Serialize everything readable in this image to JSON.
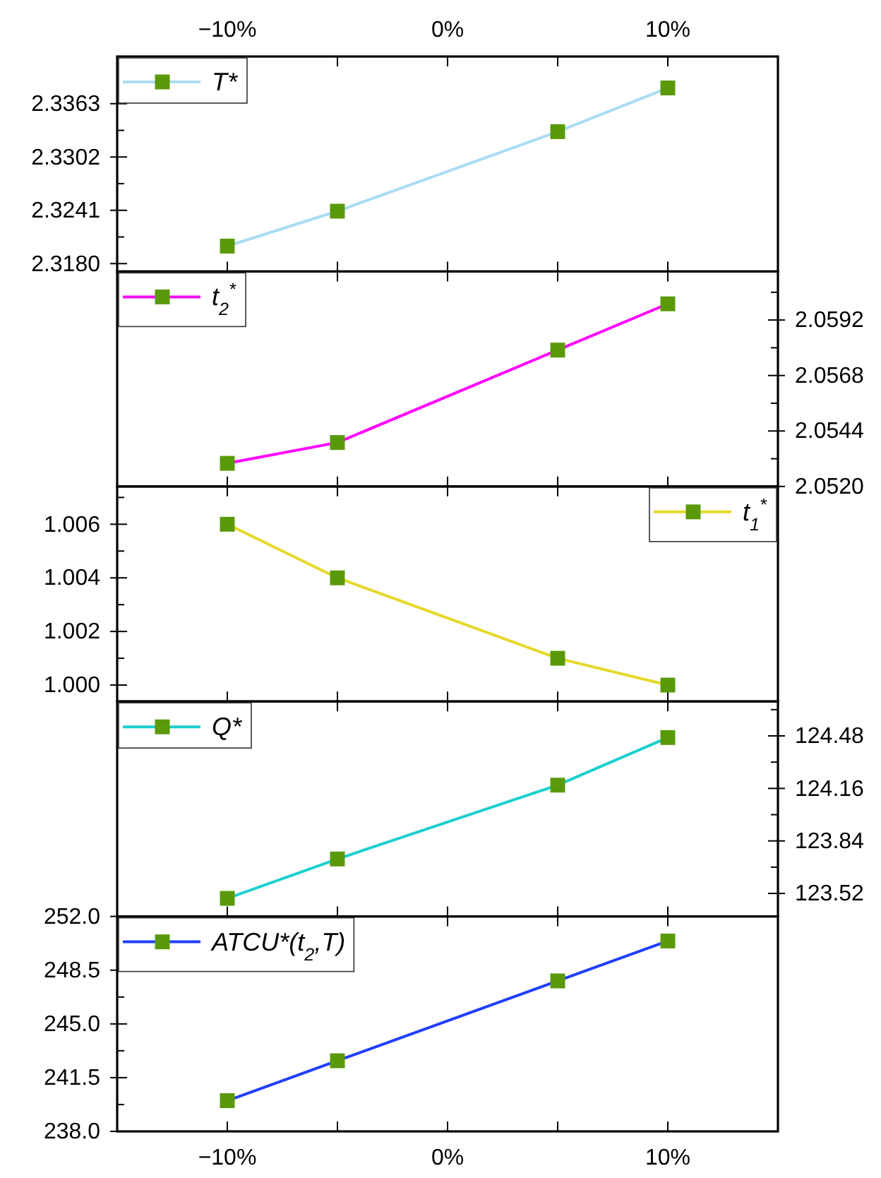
{
  "chart_data": [
    {
      "type": "line",
      "x": [
        -10,
        -5,
        5,
        10
      ],
      "xlim": [
        -15,
        15
      ],
      "xticks": [
        {
          "value": -10,
          "label": null
        },
        {
          "value": -5,
          "label": null
        },
        {
          "value": 0,
          "label": null
        },
        {
          "value": 5,
          "label": null
        },
        {
          "value": 10,
          "label": null
        }
      ],
      "x2lim": [
        -15,
        15
      ],
      "x2ticks": [
        {
          "value": -10,
          "label": "−10%"
        },
        {
          "value": -5,
          "label": null
        },
        {
          "value": 0,
          "label": "0%"
        },
        {
          "value": 5,
          "label": null
        },
        {
          "value": 10,
          "label": "10%"
        }
      ],
      "ylim": [
        2.3171,
        2.3417
      ],
      "yticks": [
        {
          "value": 2.318,
          "label": "2.3180"
        },
        {
          "value": 2.32105,
          "label": null
        },
        2.3241,
        {
          "value": 2.32715,
          "label": null
        },
        2.3302,
        {
          "value": 2.33325,
          "label": null
        },
        2.3363,
        {
          "value": 2.33935,
          "label": null
        }
      ],
      "tick_labels": "y",
      "marker": "square",
      "legend": "top left",
      "grid": false,
      "series": [
        {
          "name": "T*",
          "color": "#aadcf5",
          "values": [
            2.32,
            2.324,
            2.3331,
            2.3381
          ]
        }
      ]
    },
    {
      "type": "line",
      "x": [
        -10,
        -5,
        5,
        10
      ],
      "xlim": [
        -15,
        15
      ],
      "xticks": [
        {
          "value": -10,
          "label": null
        },
        {
          "value": -5,
          "label": null
        },
        {
          "value": 0,
          "label": null
        },
        {
          "value": 5,
          "label": null
        },
        {
          "value": 10,
          "label": null
        }
      ],
      "y2lim": [
        2.052,
        2.0613
      ],
      "y2ticks": [
        {
          "value": 2.052,
          "label": "2.0520"
        },
        {
          "value": 2.0532,
          "label": null
        },
        2.0544,
        {
          "value": 2.0556,
          "label": null
        },
        2.0568,
        {
          "value": 2.058,
          "label": null
        },
        2.0592,
        {
          "value": 2.0604,
          "label": null
        }
      ],
      "tick_labels": "y",
      "marker": "square",
      "legend": "top left",
      "grid": false,
      "series": [
        {
          "name": "t$_{2}$$^{*}$",
          "color": "#ff00ff",
          "axis": "y2",
          "values": [
            2.053,
            2.0539,
            2.0579,
            2.0599
          ]
        }
      ]
    },
    {
      "type": "line",
      "x": [
        -10,
        -5,
        5,
        10
      ],
      "xlim": [
        -15,
        15
      ],
      "xticks": [
        {
          "value": -10,
          "label": null
        },
        {
          "value": -5,
          "label": null
        },
        {
          "value": 0,
          "label": null
        },
        {
          "value": 5,
          "label": null
        },
        {
          "value": 10,
          "label": null
        }
      ],
      "ylim": [
        0.99939,
        1.00741
      ],
      "yticks": [
        {
          "value": 1.0,
          "label": "1.000"
        },
        {
          "value": 1.001,
          "label": null
        },
        1.002,
        {
          "value": 1.003,
          "label": null
        },
        1.004,
        {
          "value": 1.005,
          "label": null
        },
        1.006,
        {
          "value": 1.007,
          "label": null
        }
      ],
      "tick_labels": "y",
      "marker": "square",
      "legend": "top right",
      "grid": false,
      "series": [
        {
          "name": "t$_{1}$$^{*}$",
          "color": "#e6d82a",
          "values": [
            1.006,
            1.004,
            1.001,
            1.0
          ]
        }
      ]
    },
    {
      "type": "line",
      "x": [
        -10,
        -5,
        5,
        10
      ],
      "xlim": [
        -15,
        15
      ],
      "xticks": [
        {
          "value": -10,
          "label": null
        },
        {
          "value": -5,
          "label": null
        },
        {
          "value": 0,
          "label": null
        },
        {
          "value": 5,
          "label": null
        },
        {
          "value": 10,
          "label": null
        }
      ],
      "y2lim": [
        123.38,
        124.69
      ],
      "y2ticks": [
        123.52,
        {
          "value": 123.68,
          "label": null
        },
        123.84,
        {
          "value": 124.0,
          "label": null
        },
        124.16,
        {
          "value": 124.32,
          "label": null
        },
        124.48,
        {
          "value": 124.64,
          "label": null
        }
      ],
      "tick_labels": "y",
      "marker": "square",
      "legend": "top left",
      "grid": false,
      "series": [
        {
          "name": "Q*",
          "color": "#1ccfcf",
          "axis": "y2",
          "values": [
            123.49,
            123.73,
            124.18,
            124.47
          ]
        }
      ]
    },
    {
      "type": "line",
      "x": [
        -10,
        -5,
        5,
        10
      ],
      "xlim": [
        -15,
        15
      ],
      "xticks": [
        {
          "value": -10,
          "label": "−10%"
        },
        {
          "value": -5,
          "label": null
        },
        {
          "value": 0,
          "label": "0%"
        },
        {
          "value": 5,
          "label": null
        },
        {
          "value": 10,
          "label": "10%"
        }
      ],
      "ylim": [
        238,
        252
      ],
      "yticks": [
        {
          "value": 238,
          "label": "238.0"
        },
        {
          "value": 239.75,
          "label": null
        },
        241.5,
        {
          "value": 243.25,
          "label": null
        },
        {
          "value": 245,
          "label": "245.0"
        },
        {
          "value": 246.75,
          "label": null
        },
        248.5,
        {
          "value": 250.25,
          "label": null
        },
        {
          "value": 252,
          "label": "252.0"
        }
      ],
      "marker": "square",
      "legend": "top left",
      "grid": false,
      "series": [
        {
          "name": "ATCU*(t$_{2}$,T)",
          "color": "#1f3fff",
          "values": [
            240.0,
            242.6,
            247.8,
            250.4
          ]
        }
      ]
    }
  ]
}
